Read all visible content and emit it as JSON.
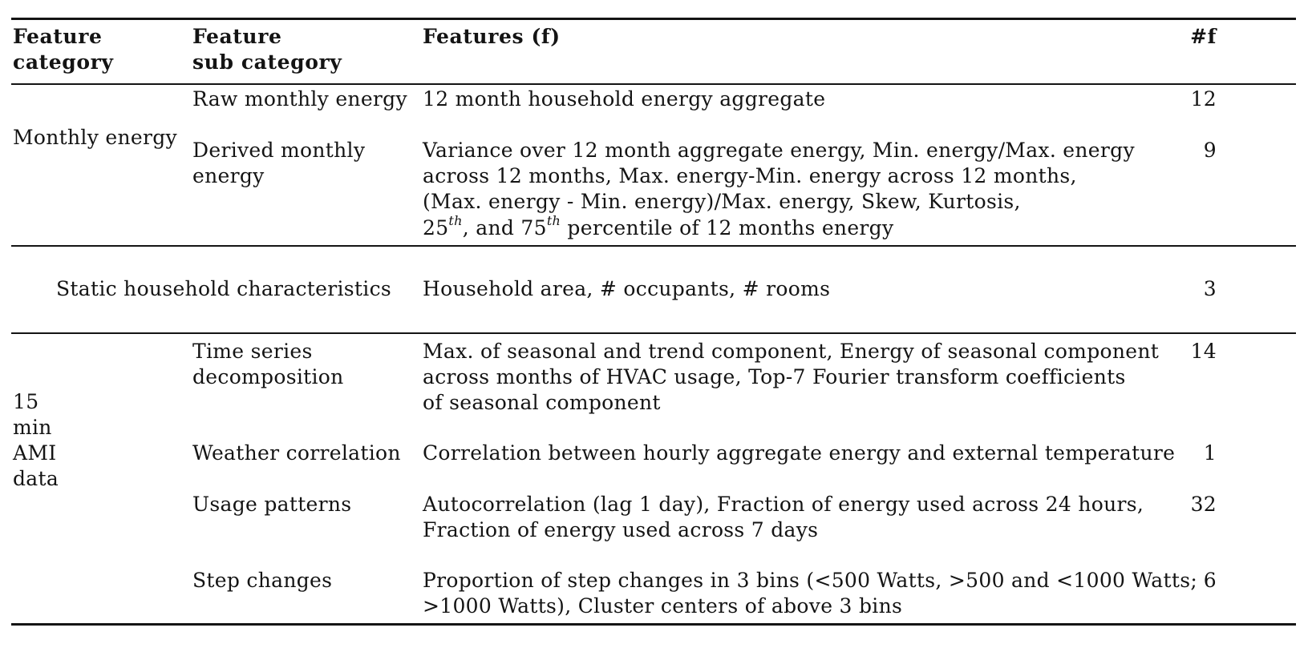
{
  "table": {
    "headers": {
      "category": [
        "Feature",
        "category"
      ],
      "subcategory": [
        "Feature",
        "sub category"
      ],
      "features": "Features (f)",
      "count": "#f"
    },
    "groups": [
      {
        "category": "Monthly energy",
        "rows": [
          {
            "subcategory": [
              "Raw monthly energy"
            ],
            "features": [
              "12 month household energy aggregate"
            ],
            "count": "12"
          },
          {
            "subcategory": [
              "Derived monthly",
              "energy"
            ],
            "features": [
              "Variance over 12 month aggregate energy, Min. energy/Max. energy",
              "across 12 months, Max. energy-Min. energy across 12 months,",
              "(Max. energy - Min. energy)/Max. energy, Skew, Kurtosis,"
            ],
            "features_last": {
              "p25": "25",
              "sup": "th",
              "mid": ", and 75",
              "tail": " percentile of 12 months energy"
            },
            "count": "9"
          }
        ]
      },
      {
        "category": "Static household characteristics",
        "rows": [
          {
            "features": [
              "Household area, # occupants, # rooms"
            ],
            "count": "3"
          }
        ]
      },
      {
        "category": [
          "15",
          "min",
          "AMI",
          "data"
        ],
        "rows": [
          {
            "subcategory": [
              "Time series",
              "decomposition"
            ],
            "features": [
              "Max. of seasonal and trend component, Energy of seasonal component",
              "across months of HVAC usage, Top-7 Fourier transform coefficients",
              "of seasonal component"
            ],
            "count": "14"
          },
          {
            "subcategory": [
              "Weather correlation"
            ],
            "features": [
              "Correlation between hourly aggregate energy and external temperature"
            ],
            "count": "1"
          },
          {
            "subcategory": [
              "Usage patterns"
            ],
            "features": [
              "Autocorrelation (lag 1 day), Fraction of energy used across 24 hours,",
              "Fraction of energy used across 7 days"
            ],
            "count": "32"
          },
          {
            "subcategory": [
              "Step changes"
            ],
            "features": [
              "Proportion of step changes in 3 bins (<500 Watts, >500 and <1000 Watts;",
              ">1000 Watts), Cluster centers of above 3 bins"
            ],
            "count": "6"
          }
        ]
      }
    ]
  }
}
